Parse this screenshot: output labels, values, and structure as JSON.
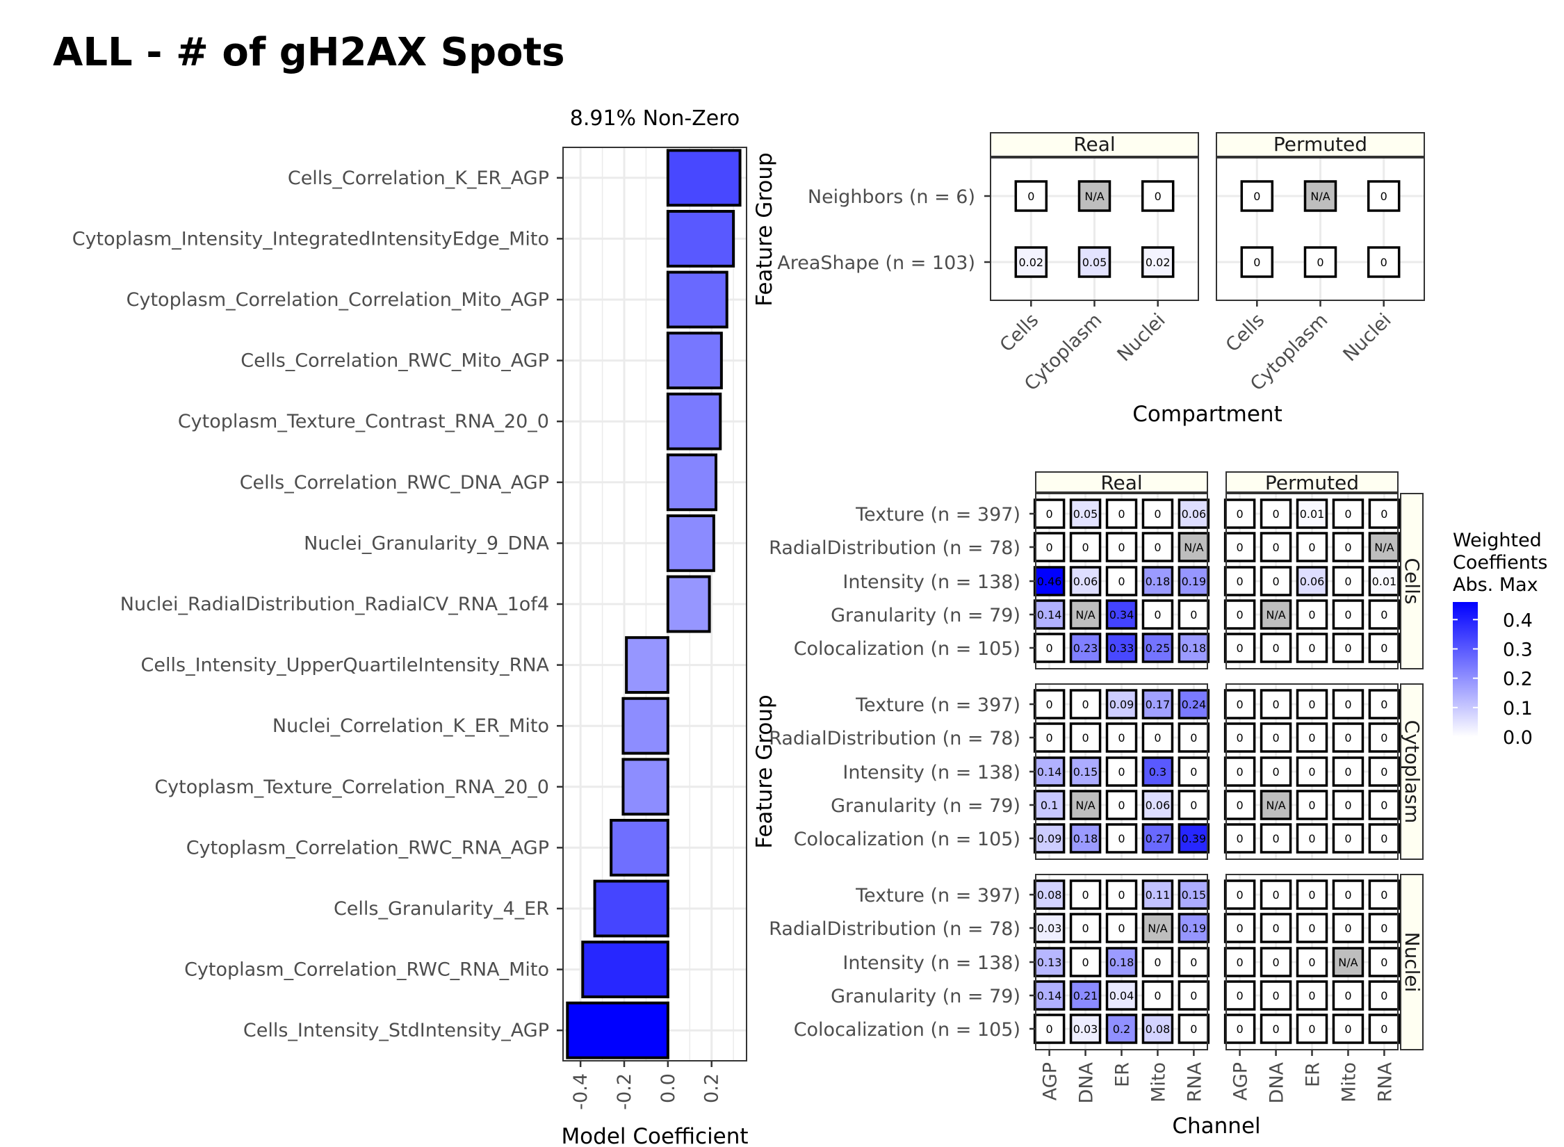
{
  "title": "ALL - # of gH2AX Spots",
  "colors": {
    "scale_low": "#ffffff",
    "scale_high": "#0000ff",
    "na_fill": "#bebebe",
    "strip_fill": "#fffff2",
    "grid": "#ebebeb"
  },
  "legend": {
    "title_lines": [
      "Weighted",
      "Coeffients",
      "Abs. Max"
    ],
    "tick_labels": [
      "0.4",
      "0.3",
      "0.2",
      "0.1",
      "0.0"
    ],
    "tick_values": [
      0.4,
      0.3,
      0.2,
      0.1,
      0.0
    ],
    "range": [
      0,
      0.46
    ]
  },
  "chart_data": [
    {
      "type": "bar",
      "orientation": "horizontal",
      "title": "8.91% Non-Zero",
      "xlabel": "Model Coefficient",
      "ylabel": "",
      "xlim": [
        -0.48,
        0.36
      ],
      "xtick_values": [
        -0.4,
        -0.2,
        0.0,
        0.2
      ],
      "xtick_labels": [
        "-0.4",
        "-0.2",
        "0.0",
        "0.2"
      ],
      "grid": true,
      "categories": [
        "Cells_Correlation_K_ER_AGP",
        "Cytoplasm_Intensity_IntegratedIntensityEdge_Mito",
        "Cytoplasm_Correlation_Correlation_Mito_AGP",
        "Cells_Correlation_RWC_Mito_AGP",
        "Cytoplasm_Texture_Contrast_RNA_20_0",
        "Cells_Correlation_RWC_DNA_AGP",
        "Nuclei_Granularity_9_DNA",
        "Nuclei_RadialDistribution_RadialCV_RNA_1of4",
        "Cells_Intensity_UpperQuartileIntensity_RNA",
        "Nuclei_Correlation_K_ER_Mito",
        "Cytoplasm_Texture_Correlation_RNA_20_0",
        "Cytoplasm_Correlation_RWC_RNA_AGP",
        "Cells_Granularity_4_ER",
        "Cytoplasm_Correlation_RWC_RNA_Mito",
        "Cells_Intensity_StdIntensity_AGP"
      ],
      "values": [
        0.33,
        0.3,
        0.27,
        0.245,
        0.24,
        0.22,
        0.21,
        0.19,
        -0.19,
        -0.205,
        -0.205,
        -0.26,
        -0.335,
        -0.39,
        -0.46
      ]
    },
    {
      "type": "heatmap",
      "xlabel": "Compartment",
      "ylabel": "Feature Group",
      "panels": [
        "Real",
        "Permuted"
      ],
      "x": [
        "Cells",
        "Cytoplasm",
        "Nuclei"
      ],
      "y": [
        "Neighbors (n = 6)",
        "AreaShape (n = 103)"
      ],
      "values": {
        "Real": [
          [
            "0",
            "N/A",
            "0"
          ],
          [
            "0.02",
            "0.05",
            "0.02"
          ]
        ],
        "Permuted": [
          [
            "0",
            "N/A",
            "0"
          ],
          [
            "0",
            "0",
            "0"
          ]
        ]
      }
    },
    {
      "type": "heatmap",
      "xlabel": "Channel",
      "ylabel": "Feature Group",
      "panels": [
        "Real",
        "Permuted"
      ],
      "rows": [
        "Cells",
        "Cytoplasm",
        "Nuclei"
      ],
      "x": [
        "AGP",
        "DNA",
        "ER",
        "Mito",
        "RNA"
      ],
      "y": [
        "Texture (n = 397)",
        "RadialDistribution (n = 78)",
        "Intensity (n = 138)",
        "Granularity (n = 79)",
        "Colocalization (n = 105)"
      ],
      "values": {
        "Cells": {
          "Real": [
            [
              "0",
              "0.05",
              "0",
              "0",
              "0.06"
            ],
            [
              "0",
              "0",
              "0",
              "0",
              "N/A"
            ],
            [
              "0.46",
              "0.06",
              "0",
              "0.18",
              "0.19"
            ],
            [
              "0.14",
              "N/A",
              "0.34",
              "0",
              "0"
            ],
            [
              "0",
              "0.23",
              "0.33",
              "0.25",
              "0.18"
            ]
          ],
          "Permuted": [
            [
              "0",
              "0",
              "0.01",
              "0",
              "0"
            ],
            [
              "0",
              "0",
              "0",
              "0",
              "N/A"
            ],
            [
              "0",
              "0",
              "0.06",
              "0",
              "0.01"
            ],
            [
              "0",
              "N/A",
              "0",
              "0",
              "0"
            ],
            [
              "0",
              "0",
              "0",
              "0",
              "0"
            ]
          ]
        },
        "Cytoplasm": {
          "Real": [
            [
              "0",
              "0",
              "0.09",
              "0.17",
              "0.24"
            ],
            [
              "0",
              "0",
              "0",
              "0",
              "0"
            ],
            [
              "0.14",
              "0.15",
              "0",
              "0.3",
              "0"
            ],
            [
              "0.1",
              "N/A",
              "0",
              "0.06",
              "0"
            ],
            [
              "0.09",
              "0.18",
              "0",
              "0.27",
              "0.39"
            ]
          ],
          "Permuted": [
            [
              "0",
              "0",
              "0",
              "0",
              "0"
            ],
            [
              "0",
              "0",
              "0",
              "0",
              "0"
            ],
            [
              "0",
              "0",
              "0",
              "0",
              "0"
            ],
            [
              "0",
              "N/A",
              "0",
              "0",
              "0"
            ],
            [
              "0",
              "0",
              "0",
              "0",
              "0"
            ]
          ]
        },
        "Nuclei": {
          "Real": [
            [
              "0.08",
              "0",
              "0",
              "0.11",
              "0.15"
            ],
            [
              "0.03",
              "0",
              "0",
              "N/A",
              "0.19"
            ],
            [
              "0.13",
              "0",
              "0.18",
              "0",
              "0"
            ],
            [
              "0.14",
              "0.21",
              "0.04",
              "0",
              "0"
            ],
            [
              "0",
              "0.03",
              "0.2",
              "0.08",
              "0"
            ]
          ],
          "Permuted": [
            [
              "0",
              "0",
              "0",
              "0",
              "0"
            ],
            [
              "0",
              "0",
              "0",
              "0",
              "0"
            ],
            [
              "0",
              "0",
              "0",
              "N/A",
              "0"
            ],
            [
              "0",
              "0",
              "0",
              "0",
              "0"
            ],
            [
              "0",
              "0",
              "0",
              "0",
              "0"
            ]
          ]
        }
      }
    }
  ]
}
